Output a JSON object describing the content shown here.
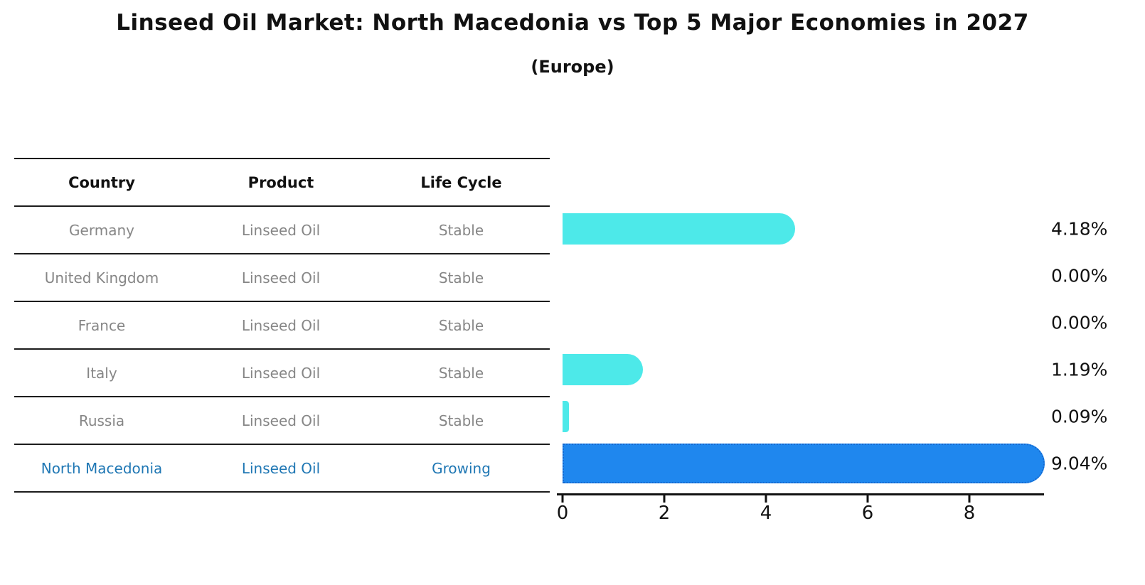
{
  "title": "Linseed Oil Market: North Macedonia vs Top 5 Major Economies in 2027",
  "subtitle": "(Europe)",
  "table": {
    "headers": [
      "Country",
      "Product",
      "Life Cycle"
    ],
    "rows": [
      {
        "country": "Germany",
        "product": "Linseed Oil",
        "life_cycle": "Stable",
        "value_label": "4.18%"
      },
      {
        "country": "United Kingdom",
        "product": "Linseed Oil",
        "life_cycle": "Stable",
        "value_label": "0.00%"
      },
      {
        "country": "France",
        "product": "Linseed Oil",
        "life_cycle": "Stable",
        "value_label": "0.00%"
      },
      {
        "country": "Italy",
        "product": "Linseed Oil",
        "life_cycle": "Stable",
        "value_label": "1.19%"
      },
      {
        "country": "Russia",
        "product": "Linseed Oil",
        "life_cycle": "Stable",
        "value_label": "0.09%"
      },
      {
        "country": "North Macedonia",
        "product": "Linseed Oil",
        "life_cycle": "Growing",
        "value_label": "9.04%"
      }
    ]
  },
  "chart_data": {
    "type": "bar",
    "orientation": "horizontal",
    "title": "Linseed Oil Market: North Macedonia vs Top 5 Major Economies in 2027",
    "subtitle": "(Europe)",
    "categories": [
      "Germany",
      "United Kingdom",
      "France",
      "Italy",
      "Russia",
      "North Macedonia"
    ],
    "values": [
      4.18,
      0.0,
      0.0,
      1.19,
      0.09,
      9.04
    ],
    "value_labels": [
      "4.18%",
      "0.00%",
      "0.00%",
      "1.19%",
      "0.09%",
      "9.04%"
    ],
    "xlim": [
      0,
      9.5
    ],
    "xticks": [
      0,
      2,
      4,
      6,
      8
    ],
    "grid": false,
    "legend": "none",
    "highlight_index": 5,
    "bar_color": "#4de9e9",
    "highlight_color": "#1f87ee",
    "highlight_border_color": "#1568cf",
    "highlight_text_color": "#1f77b4",
    "text_color": "#111111",
    "muted_text_color": "#868686"
  }
}
